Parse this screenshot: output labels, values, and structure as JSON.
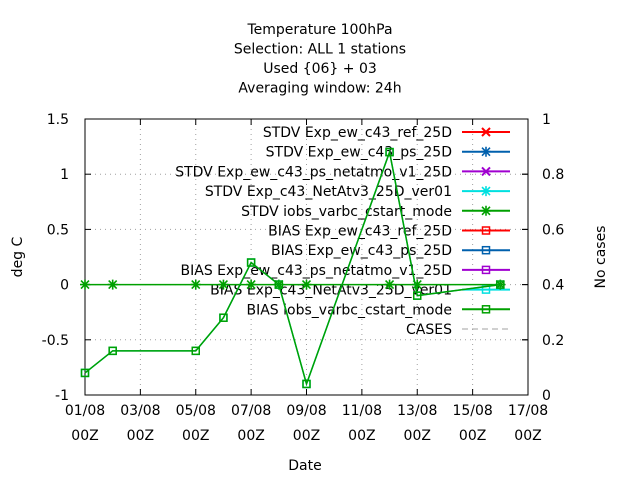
{
  "chart_data": {
    "type": "line",
    "title": [
      "Temperature 100hPa",
      "Selection: ALL       1 stations",
      "Used {06} + 03",
      "Averaging window: 24h"
    ],
    "xlabel": "Date",
    "ylabel": "deg C",
    "y2label": "No cases",
    "xlim": [
      0,
      16
    ],
    "ylim": [
      -1,
      1.5
    ],
    "y2lim": [
      0,
      1
    ],
    "x_ticks": [
      {
        "x": 0,
        "line1": "01/08",
        "line2": "00Z"
      },
      {
        "x": 2,
        "line1": "03/08",
        "line2": "00Z"
      },
      {
        "x": 4,
        "line1": "05/08",
        "line2": "00Z"
      },
      {
        "x": 6,
        "line1": "07/08",
        "line2": "00Z"
      },
      {
        "x": 8,
        "line1": "09/08",
        "line2": "00Z"
      },
      {
        "x": 10,
        "line1": "11/08",
        "line2": "00Z"
      },
      {
        "x": 12,
        "line1": "13/08",
        "line2": "00Z"
      },
      {
        "x": 14,
        "line1": "15/08",
        "line2": "00Z"
      },
      {
        "x": 16,
        "line1": "17/08",
        "line2": "00Z"
      }
    ],
    "y_ticks": [
      {
        "v": 1.5,
        "label": "1.5"
      },
      {
        "v": 1,
        "label": "1"
      },
      {
        "v": 0.5,
        "label": "0.5"
      },
      {
        "v": 0,
        "label": "0"
      },
      {
        "v": -0.5,
        "label": "-0.5"
      },
      {
        "v": -1,
        "label": "-1"
      }
    ],
    "y2_ticks": [
      {
        "v": 1,
        "label": "1"
      },
      {
        "v": 0.8,
        "label": "0.8"
      },
      {
        "v": 0.6,
        "label": "0.6"
      },
      {
        "v": 0.4,
        "label": "0.4"
      },
      {
        "v": 0.2,
        "label": "0.2"
      },
      {
        "v": 0,
        "label": "0"
      }
    ],
    "x_note": "x in days after 01/08 00Z",
    "series": [
      {
        "name": "STDV Exp_ew_c43_ref_25D",
        "color": "#ff0000",
        "marker": "x",
        "axis": "y",
        "x": [],
        "values": []
      },
      {
        "name": "STDV Exp_ew_c43_ps_25D",
        "color": "#0060ad",
        "marker": "star",
        "axis": "y",
        "x": [],
        "values": []
      },
      {
        "name": "STDV Exp_ew_c43_ps_netatmo_v1_25D",
        "color": "#a000d0",
        "marker": "x",
        "axis": "y",
        "x": [],
        "values": []
      },
      {
        "name": "STDV Exp_c43_NetAtv3_25D_ver01",
        "color": "#00e0e0",
        "marker": "star",
        "axis": "y",
        "x": [],
        "values": []
      },
      {
        "name": "STDV iobs_varbc_cstart_mode",
        "color": "#00a000",
        "marker": "star",
        "axis": "y",
        "x": [
          0,
          1,
          4,
          5,
          6,
          7,
          8,
          11,
          12,
          15
        ],
        "values": [
          0,
          0,
          0,
          0,
          0,
          0,
          0,
          0,
          0,
          0
        ]
      },
      {
        "name": "BIAS Exp_ew_c43_ref_25D",
        "color": "#ff0000",
        "marker": "square",
        "axis": "y",
        "x": [],
        "values": []
      },
      {
        "name": "BIAS Exp_ew_c43_ps_25D",
        "color": "#0060ad",
        "marker": "square",
        "axis": "y",
        "x": [],
        "values": []
      },
      {
        "name": "BIAS Exp_ew_c43_ps_netatmo_v1_25D",
        "color": "#a000d0",
        "marker": "square",
        "axis": "y",
        "x": [],
        "values": []
      },
      {
        "name": "BIAS Exp_c43_NetAtv3_25D_ver01",
        "color": "#00e0e0",
        "marker": "square",
        "axis": "y",
        "x": [
          0,
          1,
          4,
          5,
          6,
          7,
          8,
          11,
          12,
          15
        ],
        "values": [
          -0.8,
          -0.6,
          -0.6,
          -0.3,
          0.2,
          0,
          -0.9,
          1.2,
          -0.1,
          0
        ]
      },
      {
        "name": "BIAS iobs_varbc_cstart_mode",
        "color": "#00a000",
        "marker": "square",
        "axis": "y",
        "x": [
          0,
          1,
          4,
          5,
          6,
          7,
          8,
          11,
          12,
          15
        ],
        "values": [
          -0.8,
          -0.6,
          -0.6,
          -0.3,
          0.2,
          0,
          -0.9,
          1.2,
          -0.1,
          0
        ]
      },
      {
        "name": "CASES",
        "color": "#a0a0a0",
        "marker": "none",
        "axis": "y2",
        "dashed": true,
        "x": [],
        "values": []
      }
    ],
    "grid": true,
    "legend_placement": "top-right (inside)"
  }
}
